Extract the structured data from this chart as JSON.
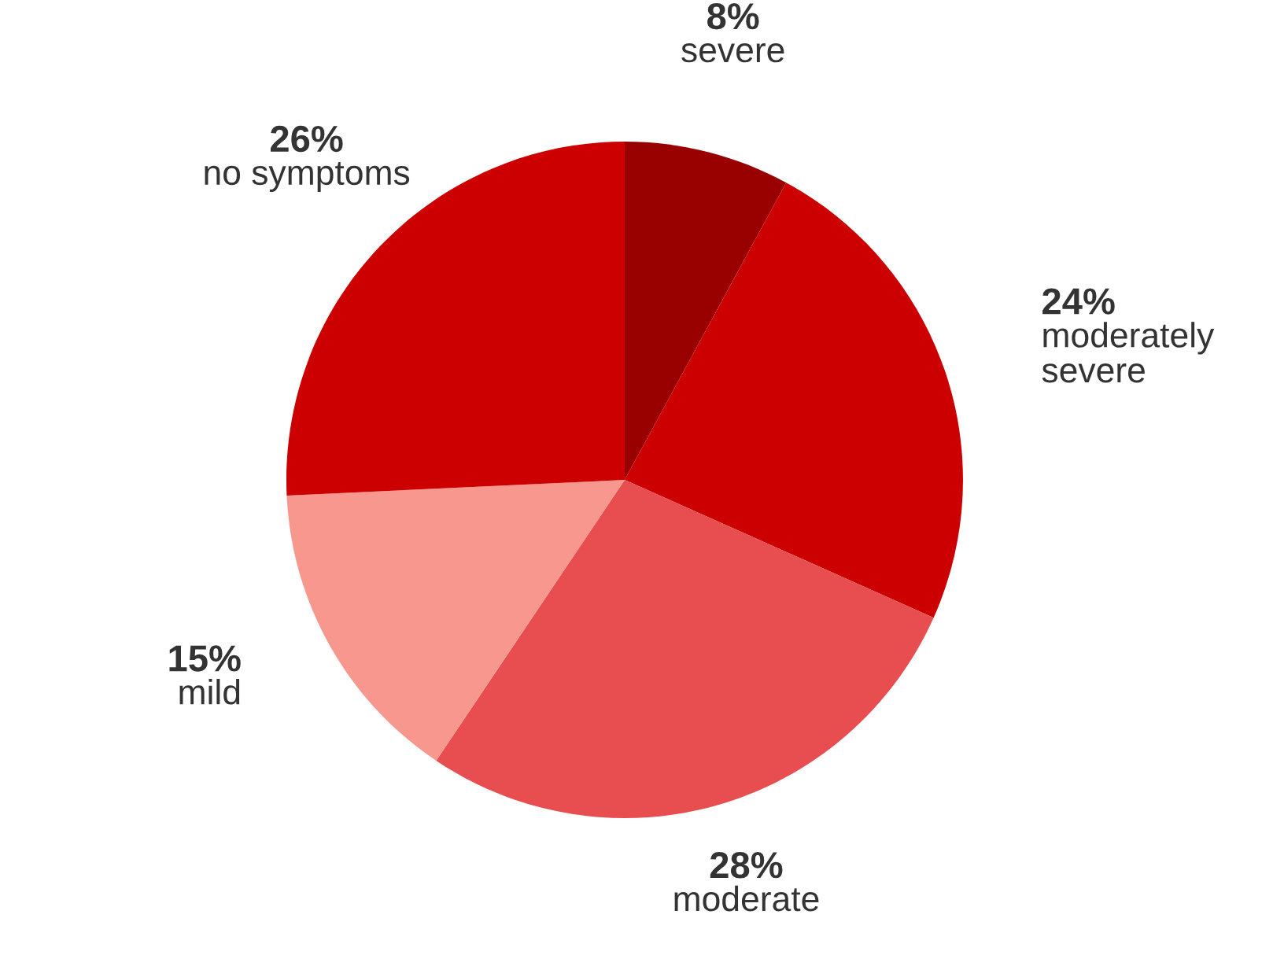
{
  "chart_data": {
    "type": "pie",
    "categories": [
      "severe",
      "moderately severe",
      "moderate",
      "mild",
      "no symptoms"
    ],
    "values": [
      8,
      24,
      28,
      15,
      26
    ],
    "colors": [
      "#990000",
      "#cc0000",
      "#e84e4f",
      "#f7978d",
      "#cc0000"
    ],
    "value_labels": [
      "8%",
      "24%",
      "28%",
      "15%",
      "26%"
    ]
  }
}
